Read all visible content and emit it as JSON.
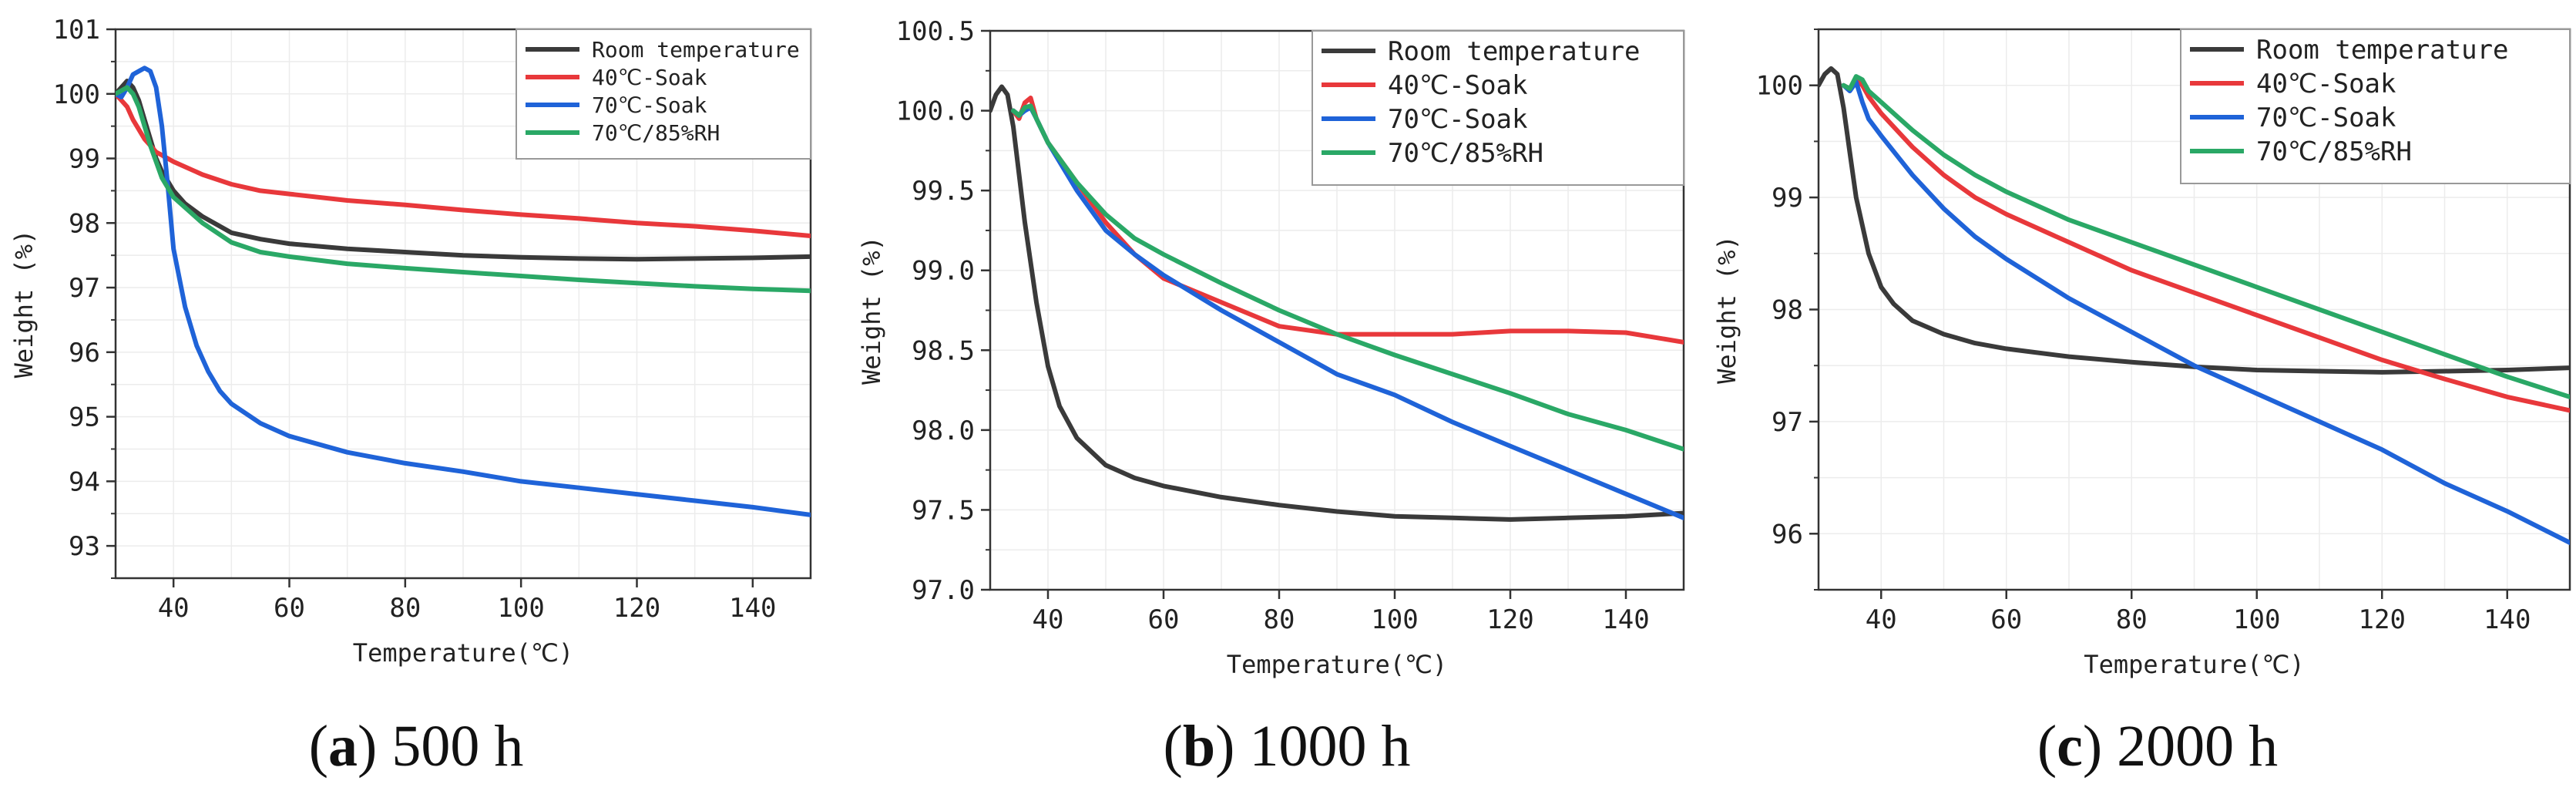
{
  "figure": {
    "captions": [
      {
        "letter": "a",
        "text": "500 h"
      },
      {
        "letter": "b",
        "text": "1000 h"
      },
      {
        "letter": "c",
        "text": "2000 h"
      }
    ]
  },
  "colors": {
    "Room temperature": "#3a3a3a",
    "40℃-Soak": "#e8383b",
    "70℃-Soak": "#1f63d8",
    "70℃/85%RH": "#2aa866"
  },
  "chart_data": [
    {
      "type": "line",
      "title": "(a) 500 h",
      "xlabel": "Temperature(℃)",
      "ylabel": "Weight (%)",
      "xlim": [
        30,
        150
      ],
      "ylim": [
        92.5,
        101
      ],
      "xticks": [
        40,
        60,
        80,
        100,
        120,
        140
      ],
      "yticks": [
        93,
        94,
        95,
        96,
        97,
        98,
        99,
        100,
        101
      ],
      "ytick_decimals": 0,
      "legend": "top-right",
      "series": [
        {
          "name": "Room temperature",
          "x": [
            30,
            31,
            32,
            33,
            34,
            35,
            36,
            37,
            38,
            40,
            42,
            45,
            50,
            55,
            60,
            70,
            80,
            90,
            100,
            110,
            120,
            130,
            140,
            150
          ],
          "y": [
            100.0,
            100.1,
            100.2,
            100.1,
            99.9,
            99.6,
            99.3,
            99.0,
            98.8,
            98.5,
            98.3,
            98.1,
            97.85,
            97.75,
            97.68,
            97.6,
            97.55,
            97.5,
            97.47,
            97.45,
            97.44,
            97.45,
            97.46,
            97.48
          ]
        },
        {
          "name": "40℃-Soak",
          "x": [
            30,
            31,
            32,
            33,
            34,
            35,
            36,
            37,
            38,
            40,
            45,
            50,
            55,
            60,
            70,
            80,
            90,
            100,
            110,
            120,
            130,
            140,
            150
          ],
          "y": [
            100.0,
            99.9,
            99.8,
            99.6,
            99.45,
            99.3,
            99.2,
            99.1,
            99.05,
            98.95,
            98.75,
            98.6,
            98.5,
            98.45,
            98.35,
            98.28,
            98.2,
            98.13,
            98.07,
            98.0,
            97.95,
            97.88,
            97.8
          ]
        },
        {
          "name": "70℃-Soak",
          "x": [
            30,
            31,
            32,
            33,
            34,
            35,
            36,
            37,
            38,
            39,
            40,
            42,
            44,
            46,
            48,
            50,
            55,
            60,
            70,
            80,
            90,
            100,
            110,
            120,
            130,
            140,
            150
          ],
          "y": [
            100.0,
            99.95,
            100.1,
            100.3,
            100.35,
            100.4,
            100.35,
            100.1,
            99.5,
            98.6,
            97.6,
            96.7,
            96.1,
            95.7,
            95.4,
            95.2,
            94.9,
            94.7,
            94.45,
            94.28,
            94.15,
            94.0,
            93.9,
            93.8,
            93.7,
            93.6,
            93.48
          ]
        },
        {
          "name": "70℃/85%RH",
          "x": [
            30,
            31,
            32,
            33,
            34,
            35,
            36,
            37,
            38,
            40,
            45,
            50,
            55,
            60,
            70,
            80,
            90,
            100,
            110,
            120,
            130,
            140,
            150
          ],
          "y": [
            100.0,
            100.05,
            100.1,
            100.0,
            99.8,
            99.5,
            99.2,
            98.95,
            98.7,
            98.4,
            98.0,
            97.7,
            97.55,
            97.48,
            97.37,
            97.3,
            97.24,
            97.18,
            97.12,
            97.07,
            97.02,
            96.98,
            96.95
          ]
        }
      ]
    },
    {
      "type": "line",
      "title": "(b) 1000 h",
      "xlabel": "Temperature(℃)",
      "ylabel": "Weight (%)",
      "xlim": [
        30,
        150
      ],
      "ylim": [
        97.0,
        100.5
      ],
      "xticks": [
        40,
        60,
        80,
        100,
        120,
        140
      ],
      "yticks": [
        97.0,
        97.5,
        98.0,
        98.5,
        99.0,
        99.5,
        100.0,
        100.5
      ],
      "ytick_decimals": 1,
      "legend": "top-right",
      "series": [
        {
          "name": "Room temperature",
          "x": [
            30,
            31,
            32,
            33,
            34,
            35,
            36,
            38,
            40,
            42,
            45,
            50,
            55,
            60,
            70,
            80,
            90,
            100,
            110,
            120,
            130,
            140,
            150
          ],
          "y": [
            100.0,
            100.1,
            100.15,
            100.1,
            99.9,
            99.6,
            99.3,
            98.8,
            98.4,
            98.15,
            97.95,
            97.78,
            97.7,
            97.65,
            97.58,
            97.53,
            97.49,
            97.46,
            97.45,
            97.44,
            97.45,
            97.46,
            97.48
          ]
        },
        {
          "name": "40℃-Soak",
          "x": [
            34,
            35,
            36,
            37,
            38,
            40,
            45,
            50,
            55,
            60,
            70,
            80,
            90,
            100,
            110,
            120,
            130,
            140,
            150
          ],
          "y": [
            100.0,
            99.95,
            100.05,
            100.08,
            99.95,
            99.8,
            99.55,
            99.3,
            99.1,
            98.95,
            98.8,
            98.65,
            98.6,
            98.6,
            98.6,
            98.62,
            98.62,
            98.61,
            98.55
          ]
        },
        {
          "name": "70℃-Soak",
          "x": [
            34,
            35,
            36,
            37,
            38,
            40,
            45,
            50,
            55,
            60,
            70,
            80,
            90,
            100,
            110,
            120,
            130,
            140,
            150
          ],
          "y": [
            100.0,
            99.97,
            100.0,
            100.02,
            99.95,
            99.8,
            99.5,
            99.25,
            99.1,
            98.97,
            98.75,
            98.55,
            98.35,
            98.22,
            98.05,
            97.9,
            97.75,
            97.6,
            97.45
          ]
        },
        {
          "name": "70℃/85%RH",
          "x": [
            34,
            35,
            36,
            37,
            38,
            40,
            45,
            50,
            55,
            60,
            70,
            80,
            90,
            100,
            110,
            120,
            130,
            140,
            150
          ],
          "y": [
            100.0,
            99.97,
            100.02,
            100.03,
            99.95,
            99.8,
            99.55,
            99.35,
            99.2,
            99.1,
            98.92,
            98.75,
            98.6,
            98.47,
            98.35,
            98.23,
            98.1,
            98.0,
            97.88
          ]
        }
      ]
    },
    {
      "type": "line",
      "title": "(c) 2000 h",
      "xlabel": "Temperature(℃)",
      "ylabel": "Weight (%)",
      "xlim": [
        30,
        150
      ],
      "ylim": [
        95.5,
        100.5
      ],
      "xticks": [
        40,
        60,
        80,
        100,
        120,
        140
      ],
      "yticks": [
        96,
        97,
        98,
        99,
        100
      ],
      "ytick_decimals": 0,
      "legend": "top-right",
      "series": [
        {
          "name": "Room temperature",
          "x": [
            30,
            31,
            32,
            33,
            34,
            35,
            36,
            38,
            40,
            42,
            45,
            50,
            55,
            60,
            70,
            80,
            90,
            100,
            110,
            120,
            130,
            140,
            150
          ],
          "y": [
            100.0,
            100.1,
            100.15,
            100.1,
            99.8,
            99.4,
            99.0,
            98.5,
            98.2,
            98.05,
            97.9,
            97.78,
            97.7,
            97.65,
            97.58,
            97.53,
            97.49,
            97.46,
            97.45,
            97.44,
            97.45,
            97.46,
            97.48
          ]
        },
        {
          "name": "40℃-Soak",
          "x": [
            34,
            35,
            36,
            37,
            38,
            40,
            45,
            50,
            55,
            60,
            70,
            80,
            90,
            100,
            110,
            120,
            130,
            140,
            150
          ],
          "y": [
            100.0,
            99.97,
            100.05,
            100.0,
            99.9,
            99.75,
            99.45,
            99.2,
            99.0,
            98.85,
            98.6,
            98.35,
            98.15,
            97.95,
            97.75,
            97.55,
            97.38,
            97.22,
            97.1
          ]
        },
        {
          "name": "70℃-Soak",
          "x": [
            34,
            35,
            36,
            37,
            38,
            40,
            45,
            50,
            55,
            60,
            70,
            80,
            90,
            100,
            110,
            120,
            130,
            140,
            150
          ],
          "y": [
            100.0,
            99.95,
            100.03,
            99.85,
            99.7,
            99.55,
            99.2,
            98.9,
            98.65,
            98.45,
            98.1,
            97.8,
            97.5,
            97.25,
            97.0,
            96.75,
            96.45,
            96.2,
            95.92
          ]
        },
        {
          "name": "70℃/85%RH",
          "x": [
            34,
            35,
            36,
            37,
            38,
            40,
            45,
            50,
            55,
            60,
            70,
            80,
            90,
            100,
            110,
            120,
            130,
            140,
            150
          ],
          "y": [
            100.0,
            99.97,
            100.08,
            100.05,
            99.95,
            99.85,
            99.6,
            99.38,
            99.2,
            99.05,
            98.8,
            98.6,
            98.4,
            98.2,
            98.0,
            97.8,
            97.6,
            97.4,
            97.22
          ]
        }
      ]
    }
  ]
}
